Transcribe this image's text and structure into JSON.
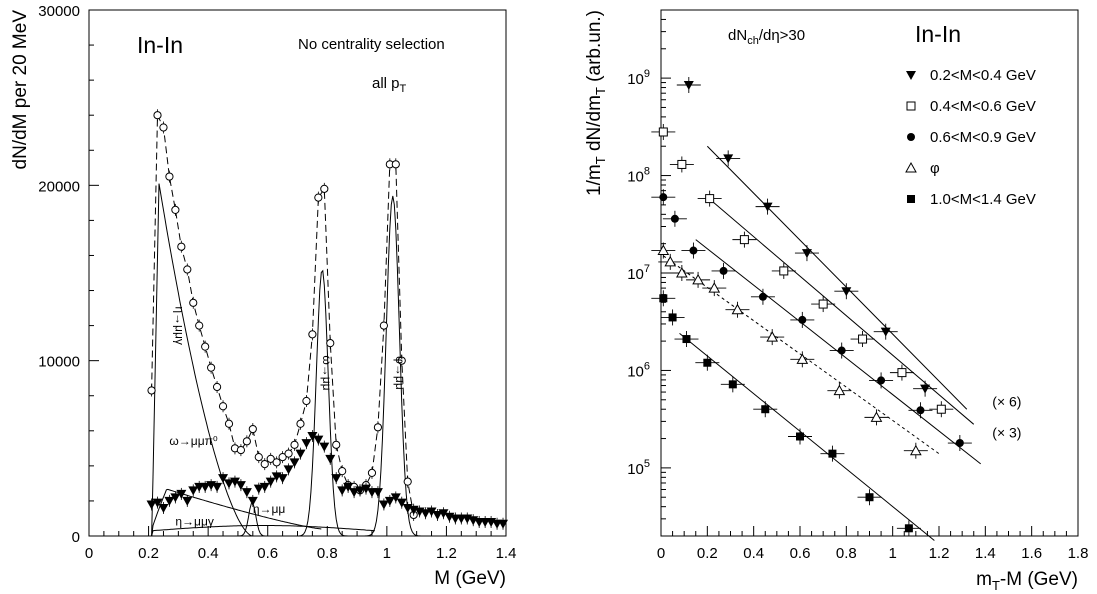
{
  "chart_data": [
    {
      "type": "scatter",
      "panel": "left",
      "xlabel": "M (GeV)",
      "ylabel": "dN/dM per 20 MeV",
      "xlim": [
        0,
        1.4
      ],
      "ylim": [
        0,
        30000
      ],
      "x_ticks": [
        0,
        0.2,
        0.4,
        0.6,
        0.8,
        1,
        1.2,
        1.4
      ],
      "x_tick_labels": [
        "0",
        "0.2",
        "0.4",
        "0.6",
        "0.8",
        "1",
        "1.2",
        "1.4"
      ],
      "y_ticks": [
        0,
        10000,
        20000,
        30000
      ],
      "y_tick_labels": [
        "0",
        "10000",
        "20000",
        "30000"
      ],
      "texts": {
        "system": "In-In",
        "centrality": "No centrality selection",
        "pt": "all p",
        "pt_sub": "T"
      },
      "annotations": [
        {
          "label": "η→μμγ",
          "x": 0.29,
          "y": 12000
        },
        {
          "label": "ω→μμπ⁰",
          "x": 0.27,
          "y": 5200
        },
        {
          "label": "η→μμ",
          "x": 0.55,
          "y": 1300
        },
        {
          "label": "η→μμγ",
          "x": 0.29,
          "y": 600
        },
        {
          "label": "ω→μμ",
          "x": 0.785,
          "y": 9300
        },
        {
          "label": "φ→μμ",
          "x": 1.03,
          "y": 9300
        }
      ],
      "series": [
        {
          "label": "total (open circles, dashed)",
          "marker": "open-circle",
          "x": [
            0.21,
            0.23,
            0.25,
            0.27,
            0.29,
            0.31,
            0.33,
            0.35,
            0.37,
            0.39,
            0.41,
            0.43,
            0.45,
            0.47,
            0.49,
            0.51,
            0.53,
            0.55,
            0.57,
            0.59,
            0.61,
            0.63,
            0.65,
            0.67,
            0.69,
            0.71,
            0.73,
            0.75,
            0.77,
            0.79,
            0.81,
            0.83,
            0.85,
            0.87,
            0.89,
            0.91,
            0.93,
            0.95,
            0.97,
            0.99,
            1.01,
            1.03,
            1.05,
            1.07,
            1.09
          ],
          "y": [
            8300,
            24000,
            23300,
            20500,
            18600,
            16500,
            15200,
            13300,
            12000,
            10800,
            9600,
            8500,
            7400,
            6400,
            5000,
            4900,
            5400,
            6100,
            4500,
            4100,
            4400,
            4200,
            4500,
            4700,
            5200,
            6400,
            7700,
            11500,
            19300,
            19800,
            11000,
            5200,
            3700,
            2900,
            2800,
            2600,
            2900,
            3600,
            6200,
            12000,
            21200,
            21200,
            10000,
            3100,
            1200
          ]
        },
        {
          "label": "excess (filled triangles)",
          "marker": "filled-triangle-down",
          "x": [
            0.21,
            0.23,
            0.25,
            0.27,
            0.29,
            0.31,
            0.33,
            0.35,
            0.37,
            0.39,
            0.41,
            0.43,
            0.45,
            0.47,
            0.49,
            0.51,
            0.53,
            0.55,
            0.57,
            0.59,
            0.61,
            0.63,
            0.65,
            0.67,
            0.69,
            0.71,
            0.73,
            0.75,
            0.77,
            0.79,
            0.81,
            0.83,
            0.85,
            0.87,
            0.89,
            0.91,
            0.93,
            0.95,
            0.97,
            0.99,
            1.01,
            1.03,
            1.05,
            1.07,
            1.09,
            1.11,
            1.13,
            1.15,
            1.17,
            1.19,
            1.21,
            1.23,
            1.25,
            1.27,
            1.29,
            1.31,
            1.33,
            1.35,
            1.37,
            1.39
          ],
          "y": [
            1800,
            1900,
            1600,
            2000,
            2200,
            2400,
            2000,
            2600,
            2800,
            2800,
            2900,
            2800,
            3300,
            3000,
            3100,
            2900,
            2500,
            2000,
            2700,
            2800,
            3100,
            3400,
            3300,
            3800,
            4200,
            4700,
            5300,
            5700,
            5500,
            5100,
            4400,
            3300,
            2600,
            2800,
            2500,
            2600,
            2700,
            2500,
            2500,
            1800,
            2000,
            2200,
            1900,
            1600,
            1500,
            1400,
            1300,
            1400,
            1200,
            1300,
            1100,
            1000,
            1000,
            1000,
            900,
            800,
            800,
            800,
            700,
            700
          ]
        }
      ]
    },
    {
      "type": "scatter",
      "panel": "right",
      "xlabel": "m_T-M (GeV)",
      "xlabel_parts": {
        "m": "m",
        "sub": "T",
        "rest": "-M (GeV)"
      },
      "ylabel": "1/m_T dN/dm_T (arb.un.)",
      "ylabel_parts": {
        "a": "1/m",
        "sub1": "T",
        "b": " dN/dm",
        "sub2": "T",
        "c": " (arb.un.)"
      },
      "yscale": "log",
      "xlim": [
        0,
        1.8
      ],
      "ylim": [
        20000,
        5000000000
      ],
      "x_ticks": [
        0,
        0.2,
        0.4,
        0.6,
        0.8,
        1,
        1.2,
        1.4,
        1.6,
        1.8
      ],
      "x_tick_labels": [
        "0",
        "0.2",
        "0.4",
        "0.6",
        "0.8",
        "1",
        "1.2",
        "1.4",
        "1.6",
        "1.8"
      ],
      "y_tick_labels": [
        {
          "base": "10",
          "exp": "5",
          "value": 100000
        },
        {
          "base": "10",
          "exp": "6",
          "value": 1000000
        },
        {
          "base": "10",
          "exp": "7",
          "value": 10000000
        },
        {
          "base": "10",
          "exp": "8",
          "value": 100000000
        },
        {
          "base": "10",
          "exp": "9",
          "value": 1000000000
        }
      ],
      "texts": {
        "cut_a": "dN",
        "cut_sub": "ch",
        "cut_b": "/dη>30",
        "system": "In-In"
      },
      "scale_labels": [
        {
          "label": "(× 6)",
          "x": 1.43,
          "y": 480000
        },
        {
          "label": "(× 3)",
          "x": 1.43,
          "y": 230000
        }
      ],
      "series": [
        {
          "name": "0.2<M<0.4 GeV",
          "marker": "filled-triangle-down",
          "x": [
            0.12,
            0.29,
            0.46,
            0.63,
            0.8,
            0.97,
            1.14
          ],
          "y": [
            850000000,
            150000000,
            48000000,
            16000000,
            6500000,
            2500000,
            650000
          ],
          "fit": [
            [
              0.2,
              200000000
            ],
            [
              1.32,
              400000
            ]
          ]
        },
        {
          "name": "0.4<M<0.6 GeV",
          "marker": "open-square",
          "x": [
            0.01,
            0.09,
            0.21,
            0.36,
            0.53,
            0.7,
            0.87,
            1.04,
            1.21
          ],
          "y": [
            280000000,
            130000000,
            58000000,
            22000000,
            10500000,
            4800000,
            2100000,
            950000,
            400000
          ],
          "fit": [
            [
              0.2,
              60000000
            ],
            [
              1.35,
              280000
            ]
          ]
        },
        {
          "name": "0.6<M<0.9 GeV",
          "marker": "filled-circle",
          "x": [
            0.01,
            0.06,
            0.14,
            0.27,
            0.44,
            0.61,
            0.78,
            0.95,
            1.12,
            1.29
          ],
          "y": [
            60000000,
            36000000,
            17000000,
            10500000,
            5700000,
            3300000,
            1600000,
            790000,
            390000,
            180000
          ],
          "fit": [
            [
              0.15,
              22000000
            ],
            [
              1.38,
              110000
            ]
          ]
        },
        {
          "name": "φ",
          "marker": "open-triangle-up",
          "x": [
            0.01,
            0.04,
            0.09,
            0.16,
            0.23,
            0.33,
            0.48,
            0.61,
            0.77,
            0.93,
            1.1
          ],
          "y": [
            17000000,
            13000000,
            10000000,
            8500000,
            7000000,
            4200000,
            2200000,
            1300000,
            620000,
            330000,
            150000
          ],
          "fit": [
            [
              0.01,
              15000000
            ],
            [
              1.2,
              140000
            ]
          ]
        },
        {
          "name": "1.0<M<1.4 GeV",
          "marker": "filled-square",
          "x": [
            0.01,
            0.05,
            0.11,
            0.2,
            0.31,
            0.45,
            0.6,
            0.74,
            0.9,
            1.07
          ],
          "y": [
            5500000,
            3500000,
            2100000,
            1200000,
            720000,
            400000,
            210000,
            140000,
            50000,
            24000
          ],
          "fit": [
            [
              0.08,
              2400000
            ],
            [
              1.18,
              18000
            ]
          ]
        }
      ]
    }
  ]
}
